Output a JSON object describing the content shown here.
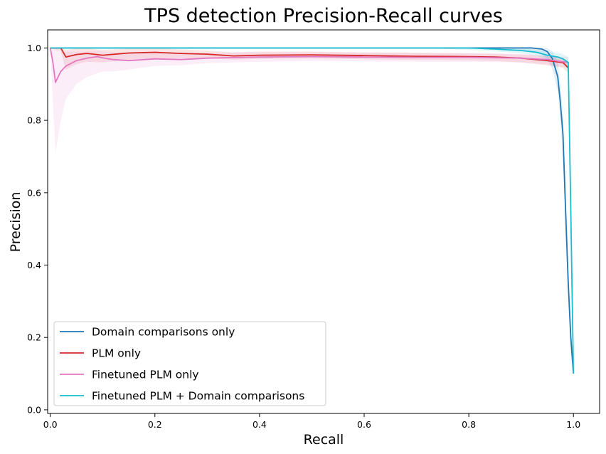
{
  "chart_data": {
    "type": "line",
    "title": "TPS detection Precision-Recall curves",
    "xlabel": "Recall",
    "ylabel": "Precision",
    "xlim": [
      -0.005,
      1.05
    ],
    "ylim": [
      -0.01,
      1.05
    ],
    "xticks": [
      0.0,
      0.2,
      0.4,
      0.6,
      0.8,
      1.0
    ],
    "xtick_labels": [
      "0.0",
      "0.2",
      "0.4",
      "0.6",
      "0.8",
      "1.0"
    ],
    "yticks": [
      0.0,
      0.2,
      0.4,
      0.6,
      0.8,
      1.0
    ],
    "ytick_labels": [
      "0.0",
      "0.2",
      "0.4",
      "0.6",
      "0.8",
      "1.0"
    ],
    "grid": false,
    "legend_position": "lower-left",
    "series": [
      {
        "name": "Domain comparisons only",
        "color": "#1f77b4",
        "x": [
          0.0,
          0.1,
          0.2,
          0.3,
          0.4,
          0.5,
          0.6,
          0.7,
          0.8,
          0.9,
          0.92,
          0.94,
          0.95,
          0.96,
          0.97,
          0.975,
          0.98,
          0.985,
          0.99,
          0.995,
          1.0
        ],
        "y": [
          1.0,
          1.0,
          1.0,
          1.0,
          1.0,
          1.0,
          1.0,
          1.0,
          1.0,
          1.0,
          1.0,
          0.997,
          0.99,
          0.97,
          0.92,
          0.85,
          0.76,
          0.55,
          0.35,
          0.2,
          0.1
        ],
        "band_lower": [
          1.0,
          1.0,
          1.0,
          1.0,
          1.0,
          1.0,
          1.0,
          1.0,
          1.0,
          0.995,
          0.99,
          0.98,
          0.97,
          0.94,
          0.88,
          0.8,
          0.7,
          0.48,
          0.3,
          0.16,
          0.1
        ],
        "band_upper": [
          1.0,
          1.0,
          1.0,
          1.0,
          1.0,
          1.0,
          1.0,
          1.0,
          1.0,
          1.0,
          1.0,
          1.0,
          1.0,
          0.99,
          0.96,
          0.9,
          0.82,
          0.62,
          0.4,
          0.24,
          0.1
        ]
      },
      {
        "name": "PLM only",
        "color": "#d62728",
        "x": [
          0.0,
          0.02,
          0.03,
          0.05,
          0.07,
          0.1,
          0.15,
          0.2,
          0.25,
          0.3,
          0.35,
          0.4,
          0.5,
          0.6,
          0.7,
          0.8,
          0.85,
          0.9,
          0.95,
          0.98,
          0.99
        ],
        "y": [
          1.0,
          1.0,
          0.975,
          0.982,
          0.985,
          0.98,
          0.986,
          0.988,
          0.985,
          0.983,
          0.978,
          0.98,
          0.981,
          0.979,
          0.977,
          0.976,
          0.975,
          0.972,
          0.965,
          0.96,
          0.945
        ],
        "band_lower": [
          1.0,
          0.99,
          0.94,
          0.955,
          0.962,
          0.96,
          0.968,
          0.972,
          0.972,
          0.972,
          0.968,
          0.97,
          0.971,
          0.969,
          0.967,
          0.966,
          0.964,
          0.96,
          0.952,
          0.945,
          0.93
        ],
        "band_upper": [
          1.0,
          1.0,
          0.995,
          0.998,
          0.999,
          0.995,
          0.998,
          0.999,
          0.996,
          0.993,
          0.988,
          0.99,
          0.99,
          0.988,
          0.987,
          0.985,
          0.984,
          0.982,
          0.977,
          0.973,
          0.96
        ]
      },
      {
        "name": "Finetuned PLM only",
        "color": "#e377c2",
        "x": [
          0.0,
          0.005,
          0.01,
          0.02,
          0.03,
          0.05,
          0.07,
          0.09,
          0.1,
          0.12,
          0.15,
          0.2,
          0.25,
          0.3,
          0.4,
          0.5,
          0.6,
          0.7,
          0.8,
          0.9,
          0.95,
          0.99
        ],
        "y": [
          1.0,
          0.96,
          0.905,
          0.935,
          0.95,
          0.965,
          0.972,
          0.976,
          0.973,
          0.968,
          0.965,
          0.97,
          0.968,
          0.972,
          0.975,
          0.976,
          0.975,
          0.974,
          0.974,
          0.972,
          0.968,
          0.96
        ],
        "band_lower": [
          1.0,
          0.85,
          0.71,
          0.8,
          0.86,
          0.9,
          0.92,
          0.93,
          0.935,
          0.935,
          0.94,
          0.95,
          0.952,
          0.958,
          0.962,
          0.964,
          0.963,
          0.962,
          0.962,
          0.96,
          0.955,
          0.945
        ],
        "band_upper": [
          1.0,
          1.0,
          1.0,
          0.99,
          0.99,
          0.99,
          0.99,
          0.992,
          0.99,
          0.988,
          0.985,
          0.988,
          0.985,
          0.986,
          0.988,
          0.988,
          0.987,
          0.986,
          0.986,
          0.984,
          0.98,
          0.975
        ]
      },
      {
        "name": "Finetuned PLM + Domain comparisons",
        "color": "#17becf",
        "x": [
          0.0,
          0.1,
          0.2,
          0.3,
          0.4,
          0.5,
          0.6,
          0.7,
          0.8,
          0.85,
          0.9,
          0.93,
          0.95,
          0.97,
          0.98,
          0.99,
          0.995,
          1.0
        ],
        "y": [
          1.0,
          1.0,
          1.0,
          1.0,
          1.0,
          1.0,
          1.0,
          1.0,
          1.0,
          0.997,
          0.993,
          0.988,
          0.98,
          0.975,
          0.97,
          0.96,
          0.55,
          0.1
        ],
        "band_lower": [
          1.0,
          1.0,
          1.0,
          1.0,
          1.0,
          1.0,
          1.0,
          1.0,
          0.995,
          0.99,
          0.985,
          0.978,
          0.968,
          0.96,
          0.955,
          0.94,
          0.5,
          0.1
        ],
        "band_upper": [
          1.0,
          1.0,
          1.0,
          1.0,
          1.0,
          1.0,
          1.0,
          1.0,
          1.0,
          1.0,
          1.0,
          0.995,
          0.99,
          0.987,
          0.983,
          0.975,
          0.6,
          0.1
        ]
      }
    ]
  }
}
